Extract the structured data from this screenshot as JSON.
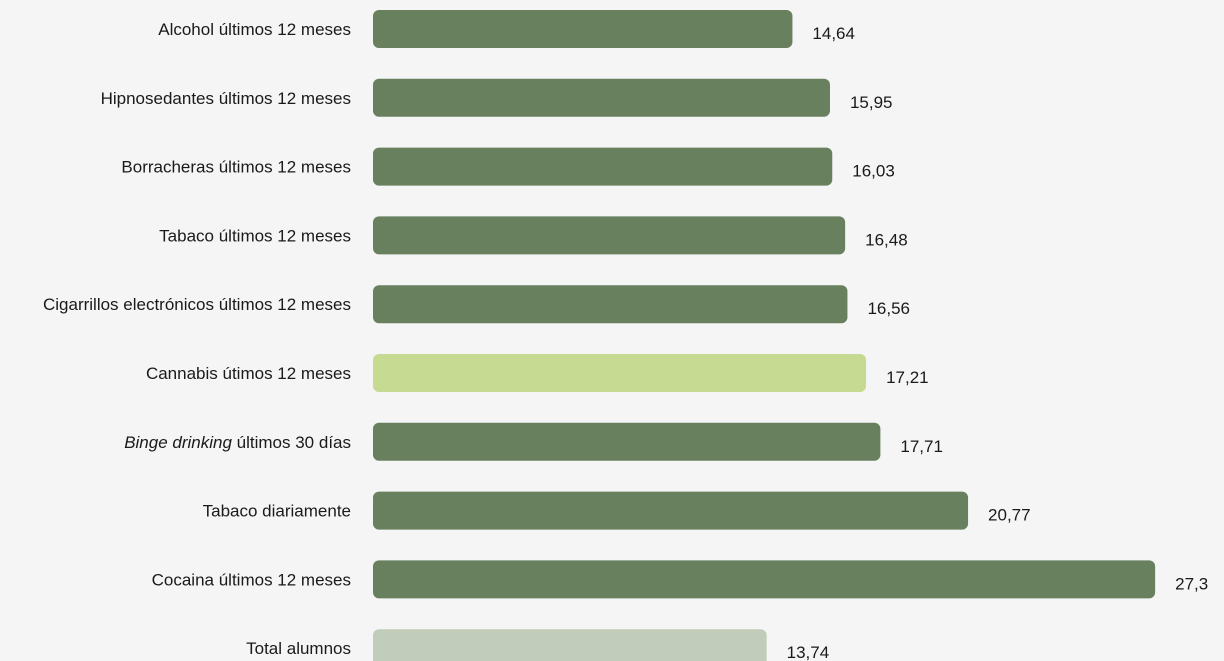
{
  "chart_data": {
    "type": "bar",
    "orientation": "horizontal",
    "title": "",
    "xlabel": "",
    "ylabel": "",
    "grid": false,
    "categories": [
      {
        "label": "Alcohol últimos 12 meses"
      },
      {
        "label": "Hipnosedantes últimos 12 meses"
      },
      {
        "label": "Borracheras últimos 12 meses"
      },
      {
        "label": "Tabaco últimos 12 meses"
      },
      {
        "label": "Cigarrillos electrónicos últimos 12 meses"
      },
      {
        "label": "Cannabis útimos 12 meses"
      },
      {
        "label_italic": "Binge drinking",
        "label": " últimos 30 días"
      },
      {
        "label": "Tabaco diariamente"
      },
      {
        "label": "Cocaina últimos 12 meses"
      },
      {
        "label": "Total alumnos"
      }
    ],
    "values": [
      14.64,
      15.95,
      16.03,
      16.48,
      16.56,
      17.21,
      17.71,
      20.77,
      27.3,
      13.74
    ],
    "value_labels": [
      "14,64",
      "15,95",
      "16,03",
      "16,48",
      "16,56",
      "17,21",
      "17,71",
      "20,77",
      "27,3",
      "13,74"
    ],
    "colors": [
      "#68805e",
      "#68805e",
      "#68805e",
      "#68805e",
      "#68805e",
      "#c6da91",
      "#68805e",
      "#68805e",
      "#68805e",
      "#c2ccba"
    ]
  }
}
